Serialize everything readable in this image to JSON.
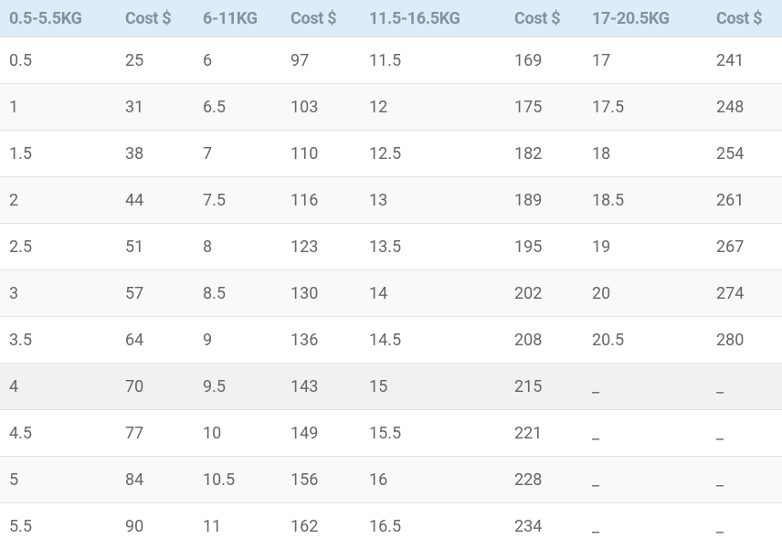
{
  "table": {
    "header": [
      "0.5-5.5KG",
      "Cost $",
      "6-11KG",
      "Cost $",
      "11.5-16.5KG",
      "Cost $",
      "17-20.5KG",
      "Cost $"
    ],
    "rows": [
      [
        "0.5",
        "25",
        "6",
        "97",
        "11.5",
        "169",
        "17",
        "241"
      ],
      [
        "1",
        "31",
        "6.5",
        "103",
        "12",
        "175",
        "17.5",
        "248"
      ],
      [
        "1.5",
        "38",
        "7",
        "110",
        "12.5",
        "182",
        "18",
        "254"
      ],
      [
        "2",
        "44",
        "7.5",
        "116",
        "13",
        "189",
        "18.5",
        "261"
      ],
      [
        "2.5",
        "51",
        "8",
        "123",
        "13.5",
        "195",
        "19",
        "267"
      ],
      [
        "3",
        "57",
        "8.5",
        "130",
        "14",
        "202",
        "20",
        "274"
      ],
      [
        "3.5",
        "64",
        "9",
        "136",
        "14.5",
        "208",
        "20.5",
        "280"
      ],
      [
        "4",
        "70",
        "9.5",
        "143",
        "15",
        "215",
        "_",
        "_"
      ],
      [
        "4.5",
        "77",
        "10",
        "149",
        "15.5",
        "221",
        "_",
        "_"
      ],
      [
        "5",
        "84",
        "10.5",
        "156",
        "16",
        "228",
        "_",
        "_"
      ],
      [
        "5.5",
        "90",
        "11",
        "162",
        "16.5",
        "234",
        "_",
        "_"
      ]
    ]
  }
}
